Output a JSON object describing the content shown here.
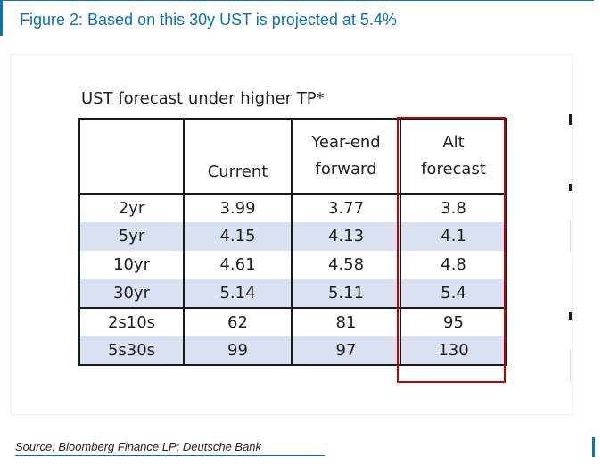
{
  "figure": {
    "title": "Figure 2:  Based on this 30y UST is projected at 5.4%",
    "accent_color": "#0c71b3"
  },
  "table": {
    "caption": "UST forecast under higher TP*",
    "headers": {
      "col0": "",
      "col1": "Current",
      "col2_line1": "Year-end",
      "col2_line2": "forward",
      "col3_line1": "Alt",
      "col3_line2": "forecast"
    },
    "rows": [
      {
        "label": "2yr",
        "current": "3.99",
        "forward": "3.77",
        "alt": "3.8"
      },
      {
        "label": "5yr",
        "current": "4.15",
        "forward": "4.13",
        "alt": "4.1"
      },
      {
        "label": "10yr",
        "current": "4.61",
        "forward": "4.58",
        "alt": "4.8"
      },
      {
        "label": "30yr",
        "current": "5.14",
        "forward": "5.11",
        "alt": "5.4"
      },
      {
        "label": "2s10s",
        "current": "62",
        "forward": "81",
        "alt": "95"
      },
      {
        "label": "5s30s",
        "current": "99",
        "forward": "97",
        "alt": "130"
      }
    ],
    "shade_color": "#d9e1f2",
    "highlight_color": "#c00000"
  },
  "source": "Source: Bloomberg Finance LP; Deutsche Bank"
}
